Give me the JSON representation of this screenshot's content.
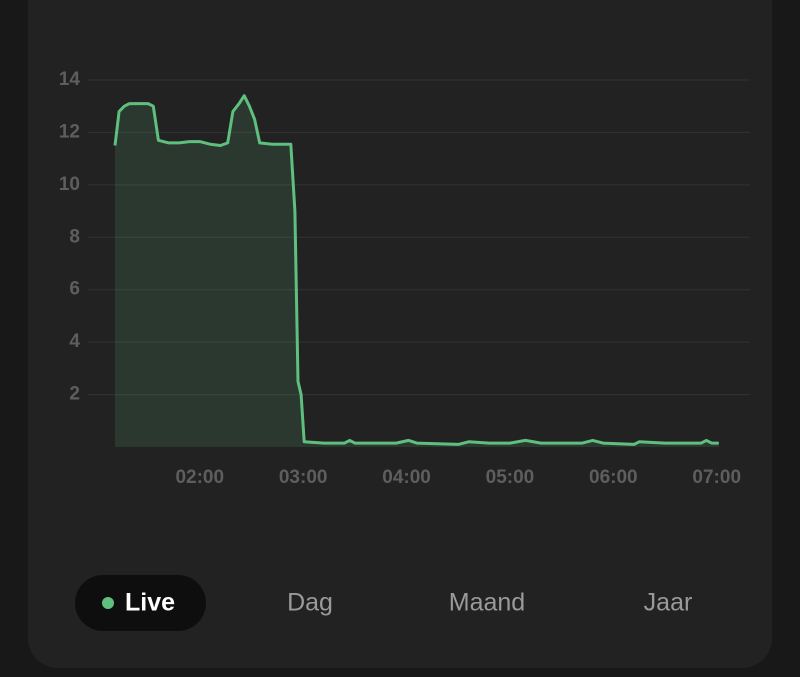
{
  "chart_data": {
    "type": "line",
    "x": [
      1.18,
      1.22,
      1.27,
      1.32,
      1.4,
      1.5,
      1.55,
      1.6,
      1.7,
      1.8,
      1.9,
      2.0,
      2.1,
      2.2,
      2.27,
      2.32,
      2.38,
      2.43,
      2.48,
      2.53,
      2.58,
      2.7,
      2.85,
      2.88,
      2.92,
      2.95,
      2.98,
      3.01,
      3.2,
      3.4,
      3.45,
      3.5,
      3.9,
      4.02,
      4.1,
      4.5,
      4.6,
      4.8,
      5.0,
      5.15,
      5.3,
      5.7,
      5.8,
      5.9,
      6.2,
      6.25,
      6.5,
      6.85,
      6.9,
      6.95,
      7.02
    ],
    "series": [
      {
        "color": "#5fbf7f",
        "values": [
          11.5,
          12.8,
          13.0,
          13.1,
          13.1,
          13.1,
          13.0,
          11.7,
          11.6,
          11.6,
          11.65,
          11.65,
          11.55,
          11.5,
          11.6,
          12.8,
          13.1,
          13.4,
          13.0,
          12.5,
          11.6,
          11.55,
          11.55,
          11.55,
          9.0,
          2.5,
          2.0,
          0.2,
          0.15,
          0.15,
          0.25,
          0.15,
          0.15,
          0.25,
          0.15,
          0.1,
          0.2,
          0.15,
          0.15,
          0.25,
          0.15,
          0.15,
          0.25,
          0.15,
          0.1,
          0.2,
          0.15,
          0.15,
          0.25,
          0.15,
          0.15
        ]
      }
    ],
    "xlim": [
      1.18,
      7.08
    ],
    "ylim": [
      0,
      14
    ],
    "xticks": [
      {
        "value": 2,
        "label": "02:00"
      },
      {
        "value": 3,
        "label": "03:00"
      },
      {
        "value": 4,
        "label": "04:00"
      },
      {
        "value": 5,
        "label": "05:00"
      },
      {
        "value": 6,
        "label": "06:00"
      },
      {
        "value": 7,
        "label": "07:00"
      }
    ],
    "yticks": [
      2,
      4,
      6,
      8,
      10,
      12,
      14
    ],
    "grid": true
  },
  "tabs": {
    "items": [
      "Live",
      "Dag",
      "Maand",
      "Jaar"
    ],
    "active": 0
  }
}
